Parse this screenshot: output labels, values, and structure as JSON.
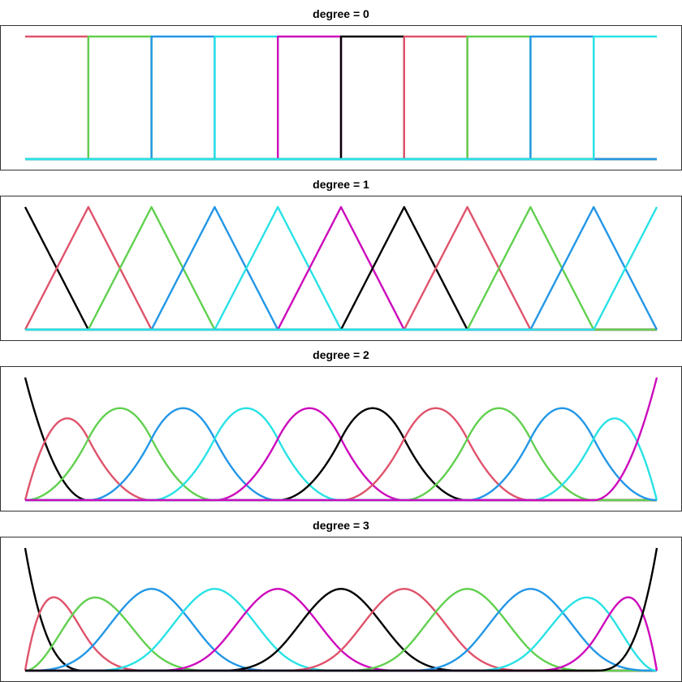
{
  "chart_data": [
    {
      "type": "line",
      "title": "degree = 0",
      "degree": 0,
      "knots": [
        0,
        1,
        2,
        3,
        4,
        5,
        6,
        7,
        8,
        9,
        10
      ],
      "x_range": [
        0,
        10
      ],
      "y_range": [
        0,
        1
      ],
      "grid": false,
      "series_count": 11,
      "color_cycle": [
        "#000000",
        "#DF536B",
        "#61D04F",
        "#2297E6",
        "#28E2E5",
        "#CD0BBC"
      ]
    },
    {
      "type": "line",
      "title": "degree = 1",
      "degree": 1,
      "knots": [
        0,
        1,
        2,
        3,
        4,
        5,
        6,
        7,
        8,
        9,
        10
      ],
      "x_range": [
        0,
        10
      ],
      "y_range": [
        0,
        1
      ],
      "grid": false,
      "series_count": 11,
      "color_cycle": [
        "#000000",
        "#DF536B",
        "#61D04F",
        "#2297E6",
        "#28E2E5",
        "#CD0BBC"
      ]
    },
    {
      "type": "line",
      "title": "degree = 2",
      "degree": 2,
      "knots": [
        0,
        1,
        2,
        3,
        4,
        5,
        6,
        7,
        8,
        9,
        10
      ],
      "x_range": [
        0,
        10
      ],
      "y_range": [
        0,
        1
      ],
      "grid": false,
      "series_count": 12,
      "color_cycle": [
        "#000000",
        "#DF536B",
        "#61D04F",
        "#2297E6",
        "#28E2E5",
        "#CD0BBC"
      ]
    },
    {
      "type": "line",
      "title": "degree = 3",
      "degree": 3,
      "knots": [
        0,
        1,
        2,
        3,
        4,
        5,
        6,
        7,
        8,
        9,
        10
      ],
      "x_range": [
        0,
        10
      ],
      "y_range": [
        0,
        1
      ],
      "grid": false,
      "series_count": 13,
      "color_cycle": [
        "#000000",
        "#DF536B",
        "#61D04F",
        "#2297E6",
        "#28E2E5",
        "#CD0BBC"
      ]
    }
  ]
}
